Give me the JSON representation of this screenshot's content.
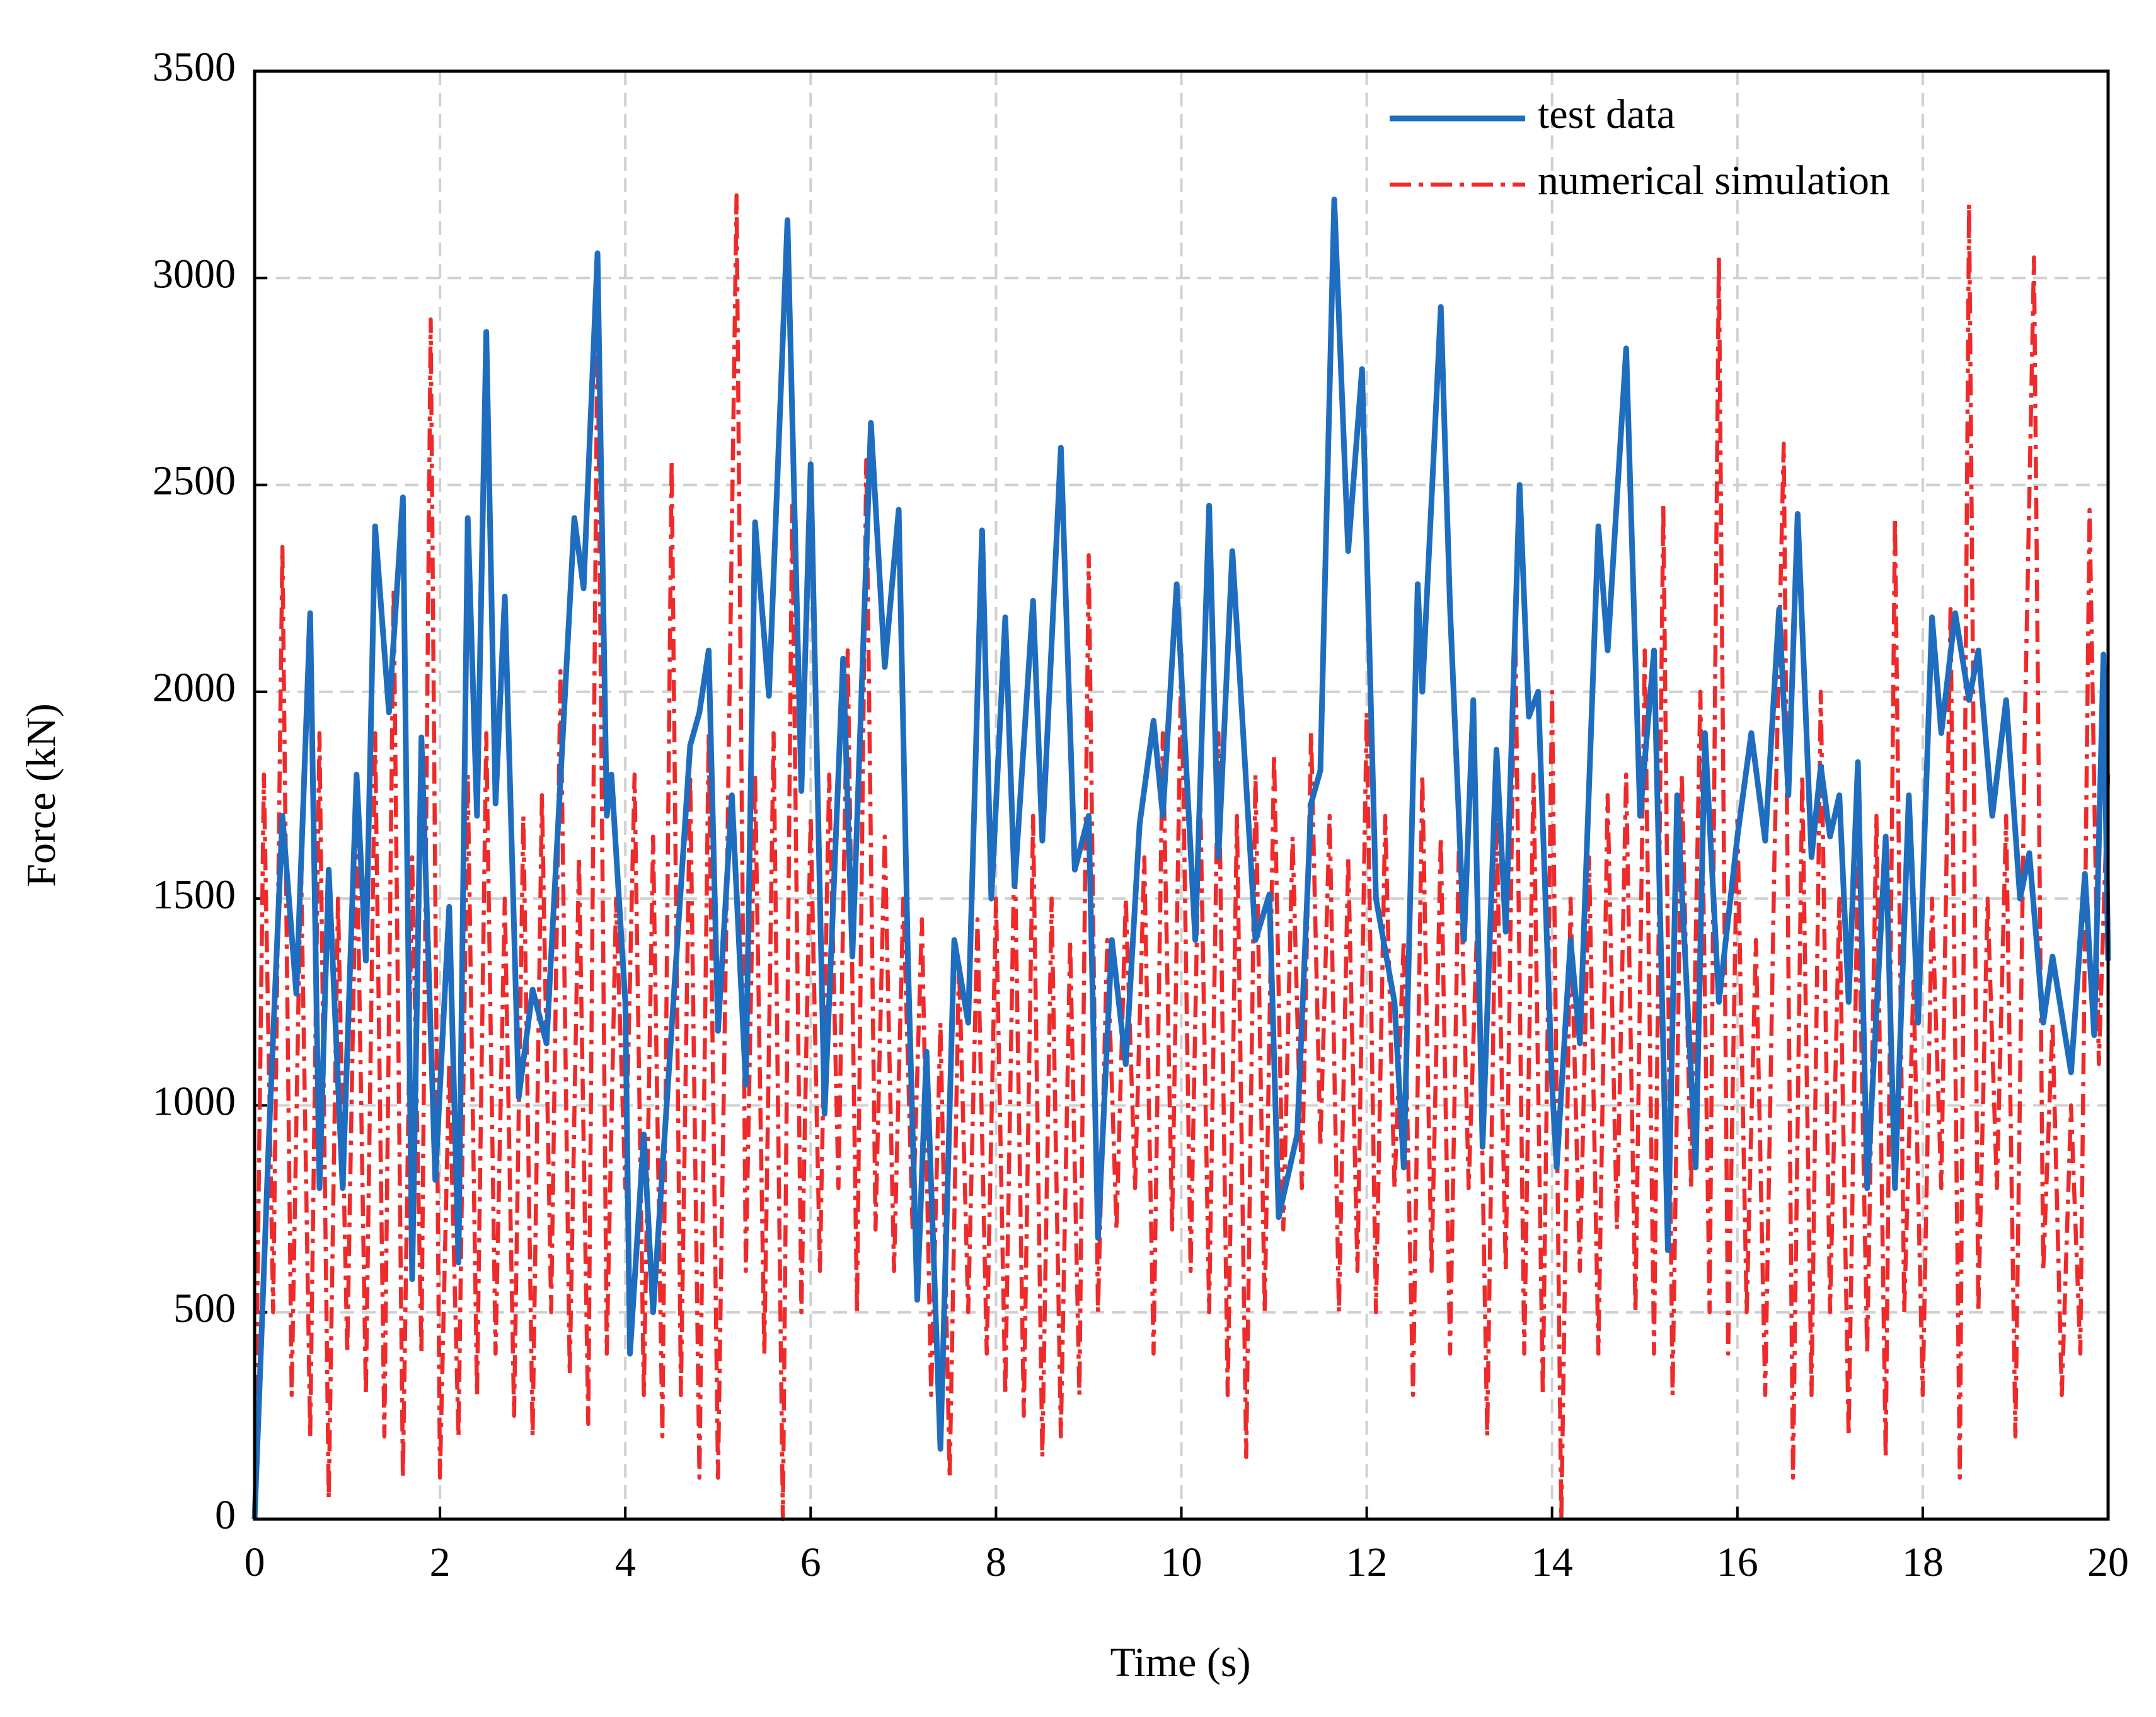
{
  "chart_data": {
    "type": "line",
    "xlabel": "Time (s)",
    "ylabel": "Force (kN)",
    "xlim": [
      0,
      20
    ],
    "ylim": [
      0,
      3500
    ],
    "xticks": [
      0,
      2,
      4,
      6,
      8,
      10,
      12,
      14,
      16,
      18,
      20
    ],
    "yticks": [
      0,
      500,
      1000,
      1500,
      2000,
      2500,
      3000,
      3500
    ],
    "grid": true,
    "legend": "upper right",
    "series": [
      {
        "name": "test data",
        "color": "#1f6dbf",
        "style": "solid",
        "x": [
          0,
          0.15,
          0.3,
          0.45,
          0.6,
          0.7,
          0.8,
          0.95,
          1.1,
          1.2,
          1.3,
          1.45,
          1.6,
          1.7,
          1.8,
          1.95,
          2.1,
          2.2,
          2.3,
          2.4,
          2.5,
          2.6,
          2.7,
          2.85,
          3.0,
          3.15,
          3.45,
          3.55,
          3.7,
          3.8,
          3.85,
          4.0,
          4.05,
          4.2,
          4.3,
          4.7,
          4.8,
          4.9,
          5.0,
          5.15,
          5.3,
          5.4,
          5.55,
          5.75,
          5.9,
          6.0,
          6.15,
          6.35,
          6.45,
          6.65,
          6.8,
          6.95,
          7.05,
          7.15,
          7.25,
          7.4,
          7.55,
          7.7,
          7.85,
          7.95,
          8.1,
          8.2,
          8.4,
          8.5,
          8.7,
          8.85,
          9.0,
          9.1,
          9.25,
          9.4,
          9.55,
          9.7,
          9.8,
          9.95,
          10.15,
          10.3,
          10.4,
          10.55,
          10.8,
          10.95,
          11.05,
          11.25,
          11.4,
          11.5,
          11.65,
          11.8,
          11.95,
          12.1,
          12.3,
          12.4,
          12.55,
          12.6,
          12.8,
          12.9,
          13.05,
          13.15,
          13.25,
          13.4,
          13.5,
          13.65,
          13.75,
          13.85,
          14.0,
          14.05,
          14.2,
          14.3,
          14.5,
          14.6,
          14.8,
          14.95,
          15.1,
          15.25,
          15.35,
          15.55,
          15.65,
          15.8,
          16.0,
          16.15,
          16.3,
          16.45,
          16.55,
          16.65,
          16.8,
          16.9,
          17.0,
          17.1,
          17.2,
          17.3,
          17.4,
          17.6,
          17.7,
          17.85,
          17.95,
          18.1,
          18.2,
          18.35,
          18.5,
          18.6,
          18.75,
          18.9,
          19.05,
          19.15,
          19.3,
          19.4,
          19.6,
          19.75,
          19.85,
          19.95,
          20
        ],
        "values": [
          0,
          900,
          1700,
          1270,
          2190,
          800,
          1570,
          800,
          1800,
          1350,
          2400,
          1950,
          2470,
          580,
          1890,
          820,
          1480,
          620,
          2420,
          1700,
          2870,
          1730,
          2230,
          1020,
          1280,
          1150,
          2420,
          2250,
          3060,
          1700,
          1800,
          1250,
          400,
          930,
          500,
          1870,
          1950,
          2100,
          1180,
          1750,
          1050,
          2410,
          1990,
          3140,
          1760,
          2550,
          980,
          2080,
          1360,
          2650,
          2060,
          2440,
          1350,
          530,
          1130,
          170,
          1400,
          1200,
          2390,
          1500,
          2180,
          1530,
          2220,
          1640,
          2590,
          1570,
          1700,
          680,
          1400,
          1100,
          1680,
          1930,
          1700,
          2260,
          1400,
          2450,
          1600,
          2340,
          1400,
          1510,
          730,
          930,
          1730,
          1810,
          3190,
          2340,
          2780,
          1500,
          1250,
          850,
          2260,
          2000,
          2930,
          2200,
          1400,
          1980,
          900,
          1860,
          1420,
          2500,
          1940,
          2000,
          1050,
          850,
          1400,
          1150,
          2400,
          2100,
          2830,
          1700,
          2100,
          650,
          1750,
          850,
          1900,
          1250,
          1650,
          1900,
          1640,
          2200,
          1750,
          2430,
          1600,
          1820,
          1650,
          1750,
          1250,
          1830,
          800,
          1650,
          800,
          1750,
          1200,
          2180,
          1900,
          2190,
          1980,
          2100,
          1700,
          1980,
          1500,
          1610,
          1200,
          1360,
          1080,
          1560,
          1170,
          2090,
          1350
        ]
      },
      {
        "name": "numerical simulation",
        "color": "#ee2a2a",
        "style": "dashdot",
        "x": [
          0,
          0.1,
          0.2,
          0.3,
          0.4,
          0.5,
          0.6,
          0.7,
          0.8,
          0.9,
          1,
          1.1,
          1.2,
          1.3,
          1.4,
          1.5,
          1.6,
          1.7,
          1.8,
          1.9,
          2,
          2.1,
          2.2,
          2.3,
          2.4,
          2.5,
          2.6,
          2.7,
          2.8,
          2.9,
          3,
          3.1,
          3.2,
          3.3,
          3.4,
          3.5,
          3.6,
          3.7,
          3.8,
          3.9,
          4,
          4.1,
          4.2,
          4.3,
          4.4,
          4.5,
          4.6,
          4.7,
          4.8,
          4.9,
          5,
          5.1,
          5.2,
          5.3,
          5.4,
          5.5,
          5.6,
          5.7,
          5.8,
          5.9,
          6,
          6.1,
          6.2,
          6.3,
          6.4,
          6.5,
          6.6,
          6.7,
          6.8,
          6.9,
          7,
          7.1,
          7.2,
          7.3,
          7.4,
          7.5,
          7.6,
          7.7,
          7.8,
          7.9,
          8,
          8.1,
          8.2,
          8.3,
          8.4,
          8.5,
          8.6,
          8.7,
          8.8,
          8.9,
          9,
          9.1,
          9.2,
          9.3,
          9.4,
          9.5,
          9.6,
          9.7,
          9.8,
          9.9,
          10,
          10.1,
          10.2,
          10.3,
          10.4,
          10.5,
          10.6,
          10.7,
          10.8,
          10.9,
          11,
          11.1,
          11.2,
          11.3,
          11.4,
          11.5,
          11.6,
          11.7,
          11.8,
          11.9,
          12,
          12.1,
          12.2,
          12.3,
          12.4,
          12.5,
          12.6,
          12.7,
          12.8,
          12.9,
          13,
          13.1,
          13.2,
          13.3,
          13.4,
          13.5,
          13.6,
          13.7,
          13.8,
          13.9,
          14,
          14.1,
          14.2,
          14.3,
          14.4,
          14.5,
          14.6,
          14.7,
          14.8,
          14.9,
          15,
          15.1,
          15.2,
          15.3,
          15.4,
          15.5,
          15.6,
          15.7,
          15.8,
          15.9,
          16,
          16.1,
          16.2,
          16.3,
          16.4,
          16.5,
          16.6,
          16.7,
          16.8,
          16.9,
          17,
          17.1,
          17.2,
          17.3,
          17.4,
          17.5,
          17.6,
          17.7,
          17.8,
          17.9,
          18,
          18.1,
          18.2,
          18.3,
          18.4,
          18.5,
          18.6,
          18.7,
          18.8,
          18.9,
          19,
          19.1,
          19.2,
          19.3,
          19.4,
          19.5,
          19.6,
          19.7,
          19.8,
          19.9,
          20
        ],
        "values": [
          0,
          1800,
          500,
          2350,
          300,
          1600,
          200,
          1900,
          50,
          1500,
          400,
          1700,
          300,
          1900,
          200,
          2250,
          100,
          1600,
          400,
          2900,
          100,
          1100,
          200,
          1800,
          300,
          1900,
          400,
          1500,
          250,
          1700,
          200,
          1750,
          500,
          2050,
          350,
          1600,
          230,
          2920,
          400,
          1500,
          800,
          1800,
          300,
          1650,
          200,
          2560,
          300,
          1800,
          100,
          1900,
          100,
          1600,
          3200,
          600,
          1800,
          400,
          1900,
          0,
          2450,
          500,
          1700,
          600,
          1800,
          800,
          2100,
          500,
          2560,
          700,
          1650,
          600,
          1500,
          700,
          1450,
          300,
          1200,
          100,
          1350,
          500,
          1450,
          400,
          1500,
          300,
          1650,
          250,
          1700,
          150,
          1500,
          200,
          1400,
          300,
          2330,
          500,
          1400,
          700,
          1500,
          800,
          1600,
          400,
          1900,
          700,
          2100,
          600,
          1800,
          500,
          1900,
          300,
          1700,
          150,
          1800,
          500,
          1850,
          700,
          1650,
          800,
          1900,
          900,
          1700,
          500,
          1600,
          600,
          1950,
          500,
          1700,
          800,
          1400,
          300,
          1800,
          600,
          1650,
          400,
          1700,
          800,
          1500,
          200,
          1700,
          600,
          2200,
          400,
          1800,
          300,
          2000,
          0,
          1500,
          600,
          1600,
          400,
          1750,
          700,
          1800,
          500,
          2100,
          400,
          2450,
          300,
          1800,
          800,
          2000,
          500,
          3050,
          400,
          1700,
          500,
          1400,
          300,
          1600,
          2600,
          100,
          1800,
          300,
          2000,
          500,
          1500,
          200,
          1600,
          400,
          1700,
          150,
          2420,
          500,
          1300,
          300,
          1500,
          800,
          2200,
          100,
          3180,
          500,
          1500,
          800,
          1700,
          200,
          1900,
          3050,
          600,
          1200,
          300,
          1000,
          400,
          2440,
          1100,
          1800
        ]
      }
    ]
  }
}
